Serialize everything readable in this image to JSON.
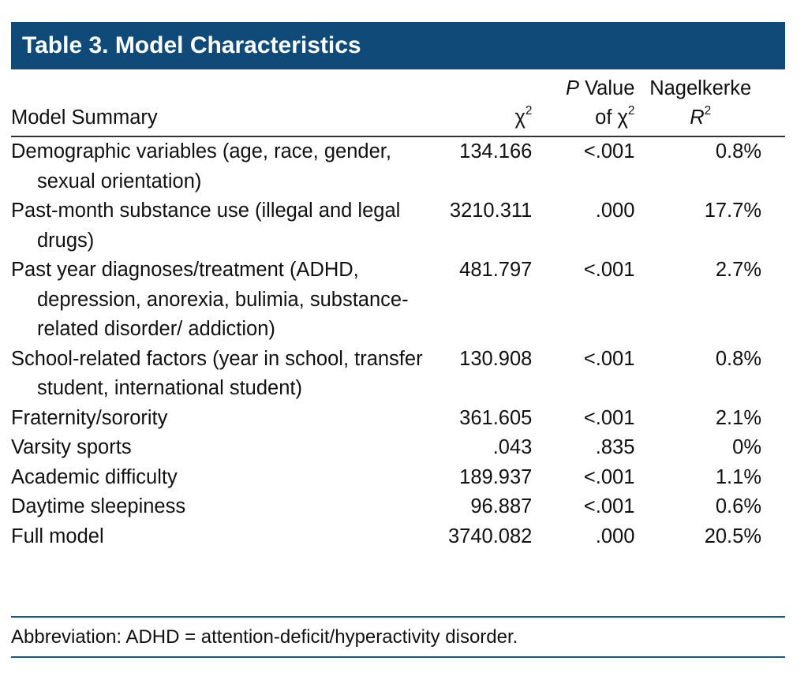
{
  "header": {
    "title": "Table 3. Model Characteristics"
  },
  "table": {
    "columns": [
      {
        "line2": "Model Summary"
      },
      {
        "line2": "χ",
        "sup": "2"
      },
      {
        "italic": "P",
        "line1": " Value",
        "line2": "of χ",
        "sup": "2"
      },
      {
        "line1": "Nagelkerke",
        "italic": "R",
        "sup": "2"
      }
    ],
    "rows": [
      [
        "Demographic variables (age, race, gender, sexual orientation)",
        "134.166",
        "<.001",
        "0.8%"
      ],
      [
        "Past-month substance use (illegal and legal drugs)",
        "3210.311",
        ".000",
        "17.7%"
      ],
      [
        "Past year diagnoses/treatment (ADHD, depression, anorexia, bulimia, substance-related disorder/ addiction)",
        "481.797",
        "<.001",
        "2.7%"
      ],
      [
        "School-related factors (year in school, transfer student, international student)",
        "130.908",
        "<.001",
        "0.8%"
      ],
      [
        "Fraternity/sorority",
        "361.605",
        "<.001",
        "2.1%"
      ],
      [
        "Varsity sports",
        ".043",
        ".835",
        "0%"
      ],
      [
        "Academic difficulty",
        "189.937",
        "<.001",
        "1.1%"
      ],
      [
        "Daytime sleepiness",
        "96.887",
        "<.001",
        "0.6%"
      ],
      [
        "Full model",
        "3740.082",
        ".000",
        "20.5%"
      ]
    ]
  },
  "footnote": "Abbreviation: ADHD = attention-deficit/hyperactivity disorder."
}
